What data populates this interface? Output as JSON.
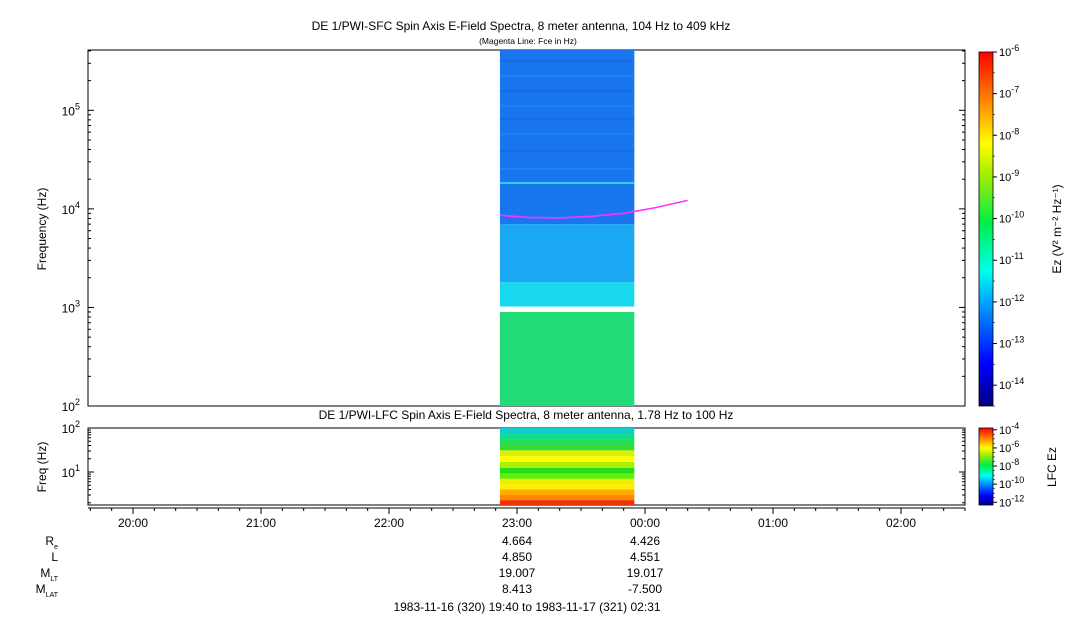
{
  "chart_data": [
    {
      "type": "heatmap",
      "title": "DE 1/PWI-SFC  Spin Axis E-Field Spectra, 8 meter antenna, 104 Hz to 409 kHz",
      "subtitle": "(Magenta Line: Fce in Hz)",
      "ylabel": "Frequency (Hz)",
      "yscale": "log",
      "ylim": [
        100,
        409000
      ],
      "ytick_exponents": [
        "5",
        "4",
        "3",
        "2"
      ],
      "ytick_base": "10",
      "data_extent": {
        "t_start": "22:52",
        "t_end": "23:55"
      },
      "data_gap_hz": [
        900,
        1020
      ],
      "color_bands": [
        {
          "fmin": 100,
          "fmax": 900,
          "color": "#22dd77"
        },
        {
          "fmin": 1020,
          "fmax": 1800,
          "color": "#18d8ee"
        },
        {
          "fmin": 1800,
          "fmax": 7000,
          "color": "#1aa8f4"
        },
        {
          "fmin": 7000,
          "fmax": 409000,
          "color": "#1a76ee"
        }
      ],
      "line_series": {
        "label": "Fce",
        "color": "#ff33ff",
        "x": [
          "22:52",
          "23:05",
          "23:20",
          "23:35",
          "23:50",
          "00:05",
          "00:20"
        ],
        "y": [
          8600,
          8200,
          8100,
          8400,
          9000,
          10300,
          12200
        ]
      },
      "colorbar": {
        "label": "Ez (V² m⁻² Hz⁻¹)",
        "tick_exponents": [
          "-6",
          "-7",
          "-8",
          "-9",
          "-10",
          "-11",
          "-12",
          "-13",
          "-14"
        ],
        "tick_base": "10",
        "range_exponents": [
          -14.5,
          -6
        ]
      }
    },
    {
      "type": "heatmap",
      "title": "DE 1/PWI-LFC  Spin Axis E-Field Spectra, 8 meter antenna, 1.78 Hz to 100 Hz",
      "ylabel": "Freq (Hz)",
      "yscale": "log",
      "ylim": [
        1.78,
        100
      ],
      "ytick_exponents": [
        "2",
        "1"
      ],
      "ytick_base": "10",
      "data_extent": {
        "t_start": "22:52",
        "t_end": "23:55"
      },
      "color_bands": [
        {
          "fmin": 1.78,
          "fmax": 2.3,
          "color": "#ee3300"
        },
        {
          "fmin": 2.3,
          "fmax": 3.0,
          "color": "#ff8800"
        },
        {
          "fmin": 3.0,
          "fmax": 4.0,
          "color": "#ffaa00"
        },
        {
          "fmin": 4.0,
          "fmax": 5.3,
          "color": "#ffee00"
        },
        {
          "fmin": 5.3,
          "fmax": 7.0,
          "color": "#eeee00"
        },
        {
          "fmin": 7.0,
          "fmax": 9.3,
          "color": "#66ee00"
        },
        {
          "fmin": 9.3,
          "fmax": 12.5,
          "color": "#22dd22"
        },
        {
          "fmin": 12.5,
          "fmax": 17.0,
          "color": "#aaee00"
        },
        {
          "fmin": 17.0,
          "fmax": 23.0,
          "color": "#ffff00"
        },
        {
          "fmin": 23.0,
          "fmax": 31.0,
          "color": "#ddee00"
        },
        {
          "fmin": 31.0,
          "fmax": 42.0,
          "color": "#33dd33"
        },
        {
          "fmin": 42.0,
          "fmax": 56.0,
          "color": "#22dd55"
        },
        {
          "fmin": 56.0,
          "fmax": 75.0,
          "color": "#11dd88"
        },
        {
          "fmin": 75.0,
          "fmax": 100.0,
          "color": "#11cccc"
        }
      ],
      "colorbar": {
        "label": "LFC Ez",
        "tick_exponents": [
          "-4",
          "-6",
          "-8",
          "-10",
          "-12"
        ],
        "tick_base": "10",
        "range_exponents": [
          -12.3,
          -3.8
        ]
      }
    }
  ],
  "time_axis": {
    "range": [
      "19:40",
      "02:31"
    ],
    "tick_labels": [
      "20:00",
      "21:00",
      "22:00",
      "23:00",
      "00:00",
      "01:00",
      "02:00"
    ]
  },
  "ephemeris": {
    "rows": [
      {
        "label": "R",
        "sub": "e",
        "values": [
          "4.664",
          "4.426"
        ]
      },
      {
        "label": "L",
        "sub": "",
        "values": [
          "4.850",
          "4.551"
        ]
      },
      {
        "label": "M",
        "sub": "LT",
        "values": [
          "19.007",
          "19.017"
        ]
      },
      {
        "label": "M",
        "sub": "LAT",
        "values": [
          "8.413",
          "-7.500"
        ]
      }
    ],
    "value_times": [
      "23:00",
      "00:00"
    ]
  },
  "date_range": "1983-11-16 (320) 19:40 to 1983-11-17 (321) 02:31"
}
